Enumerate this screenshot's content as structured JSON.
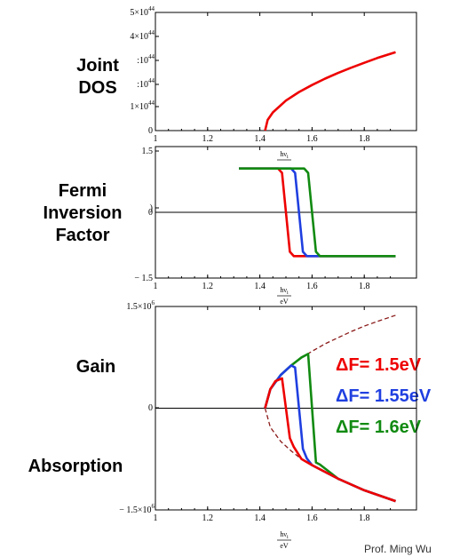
{
  "side_labels": {
    "joint_dos": [
      "Joint",
      "DOS"
    ],
    "fermi": [
      "Fermi",
      "Inversion",
      "Factor"
    ],
    "gain": "Gain",
    "absorption": "Absorption"
  },
  "legend": [
    {
      "label": "ΔF= 1.5eV",
      "color": "#ee0000"
    },
    {
      "label": "ΔF= 1.55eV",
      "color": "#1f3fe0"
    },
    {
      "label": "ΔF= 1.6eV",
      "color": "#118a11"
    }
  ],
  "footer": "Prof. Ming Wu",
  "xlabel_num": "hν",
  "xlabel_sub": "i",
  "xlabel_den": "eV",
  "chart_data": [
    {
      "type": "line",
      "xlim": [
        1,
        2
      ],
      "ylim": [
        0,
        5e+44
      ],
      "x_ticks": [
        "1",
        "1.2",
        "1.4",
        "1.6",
        "1.8"
      ],
      "y_ticks": [
        {
          "mant": "5×10",
          "exp": "44"
        },
        {
          "mant": "4×10",
          "exp": "44"
        },
        {
          "mant": ":10",
          "exp": "44"
        },
        {
          "mant": ":10",
          "exp": "44"
        },
        {
          "mant": "1×10",
          "exp": "44"
        },
        {
          "mant": "0",
          "exp": ""
        }
      ],
      "series": [
        {
          "color": "#ee0000",
          "x": [
            1.42,
            1.43,
            1.45,
            1.5,
            1.55,
            1.6,
            1.65,
            1.7,
            1.75,
            1.8,
            1.85,
            1.92
          ],
          "y": [
            0,
            4.5e+43,
            7.7e+43,
            1.27e+44,
            1.63e+44,
            1.93e+44,
            2.2e+44,
            2.44e+44,
            2.66e+44,
            2.87e+44,
            3.07e+44,
            3.32e+44
          ]
        }
      ]
    },
    {
      "type": "line",
      "xlim": [
        1,
        2
      ],
      "ylim": [
        -1.5,
        1.5
      ],
      "x_ticks": [
        "1",
        "1.2",
        "1.4",
        "1.6",
        "1.8"
      ],
      "y_ticks": [
        {
          "mant": "1.5",
          "exp": ""
        },
        {
          "mant": ")",
          "exp": ""
        },
        {
          "mant": "0",
          "exp": ""
        },
        {
          "mant": "− 1.5",
          "exp": ""
        }
      ],
      "series": [
        {
          "color": "#ee0000",
          "x": [
            1.32,
            1.47,
            1.485,
            1.5,
            1.515,
            1.53,
            1.92
          ],
          "y": [
            1,
            1,
            0.9,
            0,
            -0.9,
            -1,
            -1
          ]
        },
        {
          "color": "#1f3fe0",
          "x": [
            1.32,
            1.52,
            1.535,
            1.55,
            1.565,
            1.58,
            1.92
          ],
          "y": [
            1,
            1,
            0.9,
            0,
            -0.9,
            -1,
            -1
          ]
        },
        {
          "color": "#118a11",
          "x": [
            1.32,
            1.57,
            1.585,
            1.6,
            1.615,
            1.63,
            1.92
          ],
          "y": [
            1,
            1,
            0.9,
            0,
            -0.9,
            -1,
            -1
          ]
        }
      ]
    },
    {
      "type": "line",
      "xlim": [
        1,
        2
      ],
      "ylim": [
        -1500000.0,
        1500000.0
      ],
      "x_ticks": [
        "1",
        "1.2",
        "1.4",
        "1.6",
        "1.8"
      ],
      "y_ticks": [
        {
          "mant": "1.5×10",
          "exp": "6"
        },
        {
          "mant": "0",
          "exp": ""
        },
        {
          "mant": "− 1.5×10",
          "exp": "6"
        }
      ],
      "series": [
        {
          "color": "#8b1a1a",
          "dashed": true,
          "x": [
            1.42,
            1.44,
            1.48,
            1.52,
            1.56,
            1.6,
            1.65,
            1.7,
            1.75,
            1.8,
            1.85,
            1.92
          ],
          "y": [
            0,
            280000.0,
            490000.0,
            630000.0,
            750000.0,
            840000.0,
            950000.0,
            1040000.0,
            1130000.0,
            1210000.0,
            1280000.0,
            1370000.0
          ]
        },
        {
          "color": "#8b1a1a",
          "dashed": true,
          "x": [
            1.42,
            1.44,
            1.48,
            1.52,
            1.56,
            1.6,
            1.65,
            1.7,
            1.75,
            1.8,
            1.85,
            1.92
          ],
          "y": [
            0,
            -280000.0,
            -490000.0,
            -630000.0,
            -750000.0,
            -840000.0,
            -950000.0,
            -1040000.0,
            -1130000.0,
            -1210000.0,
            -1280000.0,
            -1370000.0
          ]
        },
        {
          "color": "#118a11",
          "x": [
            1.42,
            1.44,
            1.48,
            1.52,
            1.56,
            1.585,
            1.6,
            1.615,
            1.63,
            1.7,
            1.8,
            1.92
          ],
          "y": [
            0,
            280000.0,
            490000.0,
            630000.0,
            750000.0,
            800000.0,
            0,
            -800000.0,
            -830000.0,
            -1040000.0,
            -1210000.0,
            -1370000.0
          ]
        },
        {
          "color": "#1f3fe0",
          "x": [
            1.42,
            1.44,
            1.48,
            1.52,
            1.535,
            1.55,
            1.565,
            1.58,
            1.6,
            1.7,
            1.8,
            1.92
          ],
          "y": [
            0,
            280000.0,
            490000.0,
            630000.0,
            600000.0,
            0,
            -600000.0,
            -740000.0,
            -840000.0,
            -1040000.0,
            -1210000.0,
            -1370000.0
          ]
        },
        {
          "color": "#ee0000",
          "x": [
            1.42,
            1.44,
            1.46,
            1.485,
            1.5,
            1.515,
            1.53,
            1.56,
            1.6,
            1.7,
            1.8,
            1.92
          ],
          "y": [
            0,
            280000.0,
            400000.0,
            440000.0,
            0,
            -440000.0,
            -570000.0,
            -750000.0,
            -840000.0,
            -1040000.0,
            -1210000.0,
            -1370000.0
          ]
        }
      ]
    }
  ]
}
